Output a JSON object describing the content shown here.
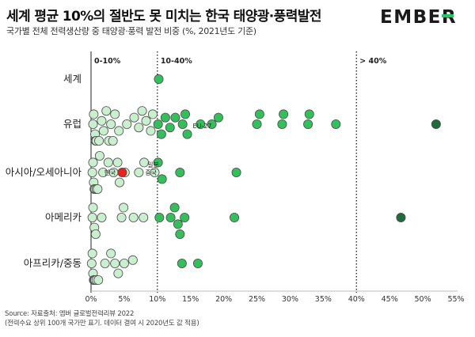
{
  "title": "세계 평균 10%의 절반도 못 미치는 한국 태양광·풍력발전",
  "subtitle": "국가별 전체 전력생산량 중 태양광·풍력 발전 비중 (%, 2021년도 기준)",
  "brand": "EMBER",
  "source_line1": "Source: 자료출처: 엠버 글로벌전력리뷰 2022",
  "source_line2": "(전력수요 상위 100개 국가만 표기. 데이터 결여 시 2020년도 값 적용)",
  "colors": {
    "light": "#c9efcf",
    "mid": "#35bf5c",
    "dark": "#1f6b3c",
    "highlight": "#e8221c",
    "outline": "#4d4d4d",
    "logo_bar": "#21c865"
  },
  "chart_data": {
    "type": "scatter",
    "xlim": [
      0,
      55
    ],
    "x_ticks": [
      "0%",
      "5%",
      "10%",
      "15%",
      "20%",
      "25%",
      "30%",
      "35%",
      "40%",
      "45%",
      "50%",
      "55%"
    ],
    "x_tick_values": [
      0,
      5,
      10,
      15,
      20,
      25,
      30,
      35,
      40,
      45,
      50,
      55
    ],
    "thresholds": [
      10,
      40
    ],
    "band_labels": [
      "0-10%",
      "10-40%",
      "> 40%"
    ],
    "categories": [
      "세계",
      "유럽",
      "아시아/오세아니아",
      "아메리카",
      "아프리카/중동"
    ],
    "series": [
      {
        "category": "세계",
        "values": [
          10.2
        ]
      },
      {
        "category": "유럽",
        "values": [
          0.3,
          0.4,
          0.6,
          0.7,
          0.8,
          1.2,
          1.6,
          1.9,
          2.3,
          2.7,
          3.0,
          3.3,
          3.6,
          4.2,
          5.4,
          6.5,
          7.2,
          7.7,
          8.3,
          9.0,
          9.3,
          10.1,
          10.6,
          11.2,
          11.9,
          12.7,
          13.8,
          14.2,
          14.5,
          16.5,
          18.2,
          19.2,
          25.0,
          25.4,
          28.8,
          29.0,
          32.7,
          32.9,
          36.9,
          52.0
        ],
        "annotations": [
          {
            "label": "EU-27",
            "value": 14.5
          }
        ]
      },
      {
        "category": "아시아/오세아니아",
        "values": [
          0.2,
          0.3,
          0.4,
          0.5,
          0.6,
          0.8,
          1.0,
          1.3,
          1.8,
          2.6,
          3.4,
          4.0,
          4.3,
          5.1,
          7.2,
          8.0,
          9.6,
          10.1,
          10.7,
          13.4,
          21.9
        ],
        "highlight": {
          "label": "한국",
          "value": 4.7
        },
        "annotations": [
          {
            "label": "일본",
            "value": 9.6
          },
          {
            "label": "중국",
            "value": 10.7
          }
        ]
      },
      {
        "category": "아메리카",
        "values": [
          0.2,
          0.3,
          0.5,
          0.7,
          1.6,
          4.6,
          4.9,
          6.4,
          7.9,
          10.3,
          12.0,
          12.6,
          13.1,
          13.4,
          14.1,
          21.6,
          46.7
        ]
      },
      {
        "category": "아프리카/중동",
        "values": [
          0.1,
          0.2,
          0.3,
          0.4,
          0.5,
          0.6,
          0.8,
          1.1,
          2.1,
          3.0,
          3.6,
          4.1,
          5.0,
          6.3,
          13.7,
          16.1
        ]
      }
    ]
  }
}
